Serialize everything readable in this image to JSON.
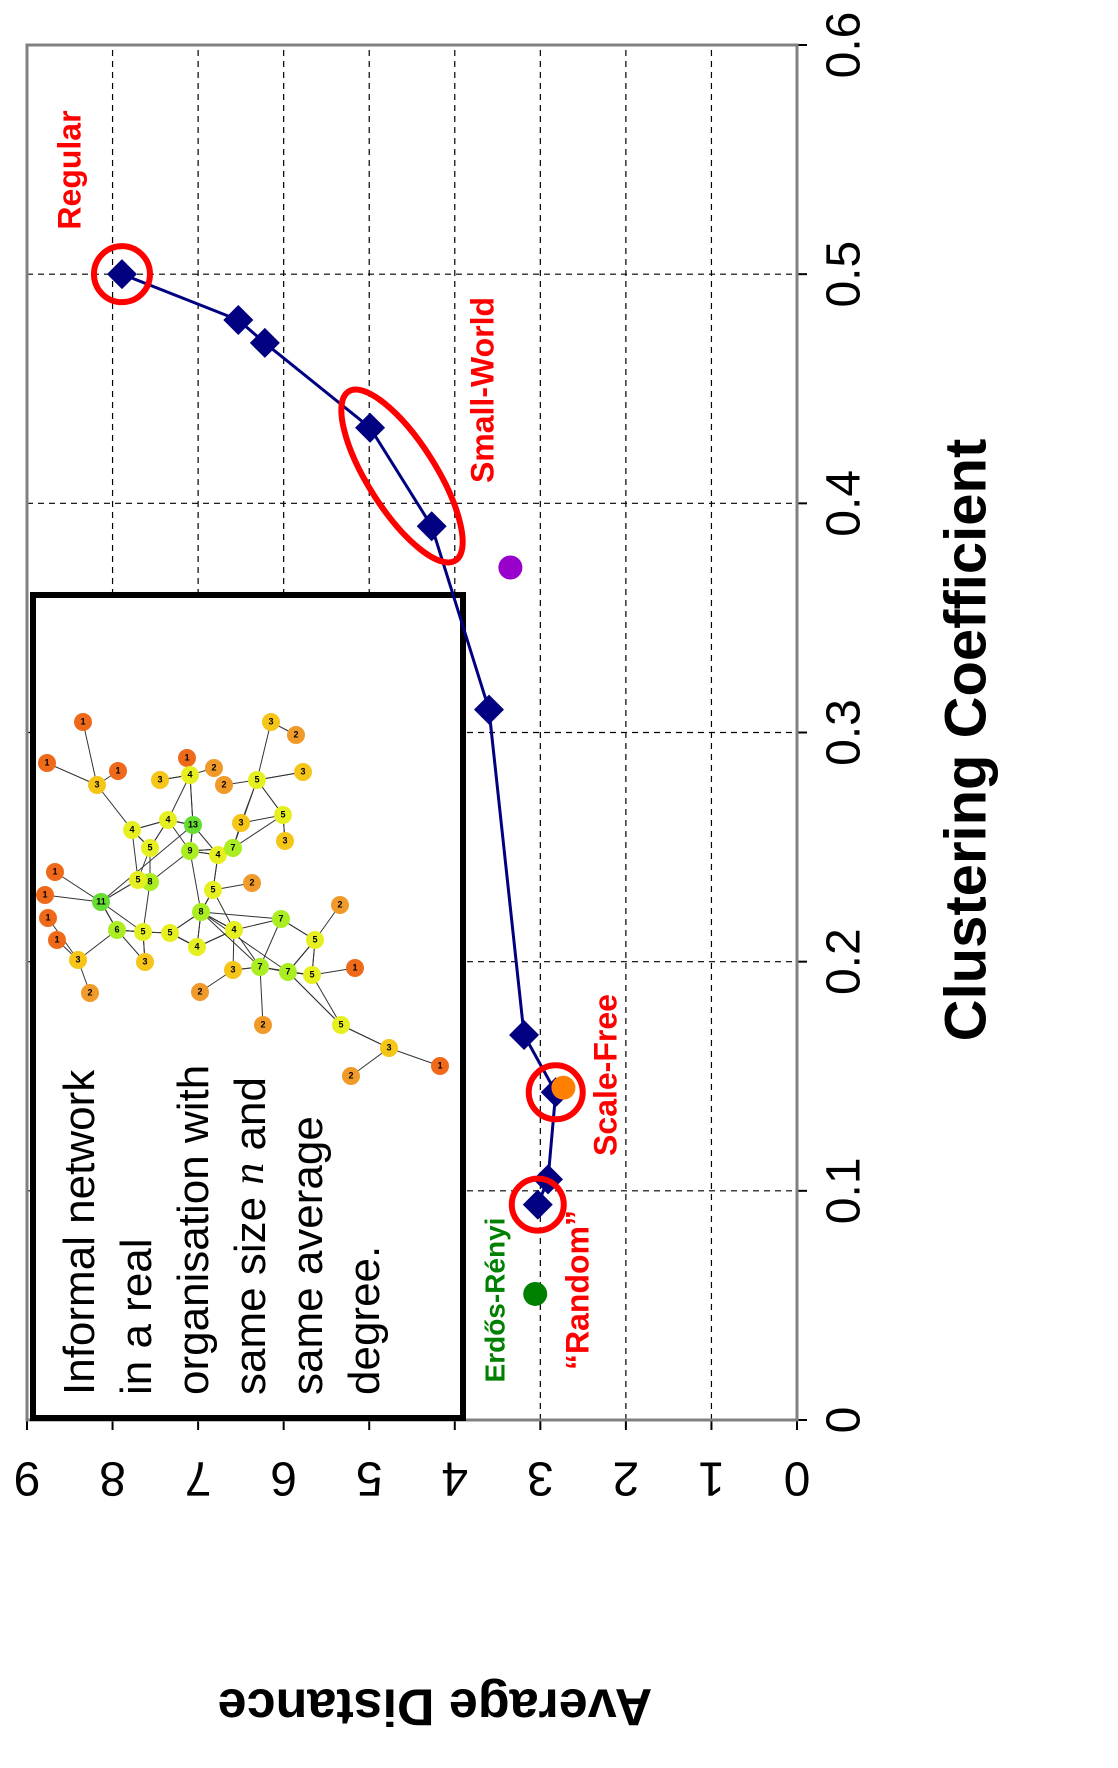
{
  "chart_data": {
    "type": "line",
    "x_label": "Clustering Coefficient",
    "y_label": "Average Distance",
    "xlim": [
      0,
      0.6
    ],
    "ylim": [
      0,
      9
    ],
    "xticks": [
      0,
      0.1,
      0.2,
      0.3,
      0.4,
      0.5,
      0.6
    ],
    "yticks": [
      0,
      1,
      2,
      3,
      4,
      5,
      6,
      7,
      8,
      9
    ],
    "grid": true,
    "series": [
      {
        "color": "#000080",
        "marker": "diamond",
        "line": true,
        "x": [
          0.094,
          0.105,
          0.143,
          0.168,
          0.31,
          0.39,
          0.433,
          0.47,
          0.48,
          0.5
        ],
        "values": [
          3.03,
          2.91,
          2.82,
          3.19,
          3.6,
          4.27,
          4.99,
          6.22,
          6.53,
          7.89
        ]
      },
      {
        "color": "#008000",
        "marker": "circle",
        "line": false,
        "x": [
          0.055
        ],
        "values": [
          3.06
        ]
      },
      {
        "color": "#9900cc",
        "marker": "circle",
        "line": false,
        "x": [
          0.372
        ],
        "values": [
          3.35
        ]
      },
      {
        "color": "#ff8000",
        "marker": "circle",
        "line": false,
        "x": [
          0.145
        ],
        "values": [
          2.73
        ]
      }
    ],
    "annotations": [
      {
        "text": "Regular",
        "color": "#ff0000"
      },
      {
        "text": "Small-World",
        "color": "#ff0000"
      },
      {
        "text": "Scale-Free",
        "color": "#ff0000"
      },
      {
        "text": "“Random”",
        "color": "#ff0000"
      },
      {
        "text": "Erdős-Rényi",
        "color": "#008000"
      }
    ]
  },
  "inset": {
    "text": [
      [
        "Informal network"
      ],
      [
        "in a real"
      ],
      [
        "organisation with"
      ],
      [
        "same size ",
        "n",
        " and"
      ],
      [
        "same average"
      ],
      [
        "degree."
      ]
    ],
    "network_node_labels": [
      "1",
      "1",
      "1",
      "3",
      "1",
      "4",
      "2",
      "2",
      "3",
      "2",
      "3",
      "5",
      "5",
      "3",
      "3",
      "4",
      "4",
      "13",
      "3",
      "5",
      "9",
      "4",
      "7",
      "2",
      "8",
      "5",
      "8",
      "11",
      "6",
      "5",
      "5",
      "4",
      "4",
      "7",
      "5",
      "2",
      "1",
      "1",
      "1",
      "1",
      "3",
      "2",
      "2",
      "3",
      "7",
      "7",
      "5",
      "1",
      "2",
      "5",
      "3",
      "2",
      "1",
      "3",
      "5"
    ]
  }
}
